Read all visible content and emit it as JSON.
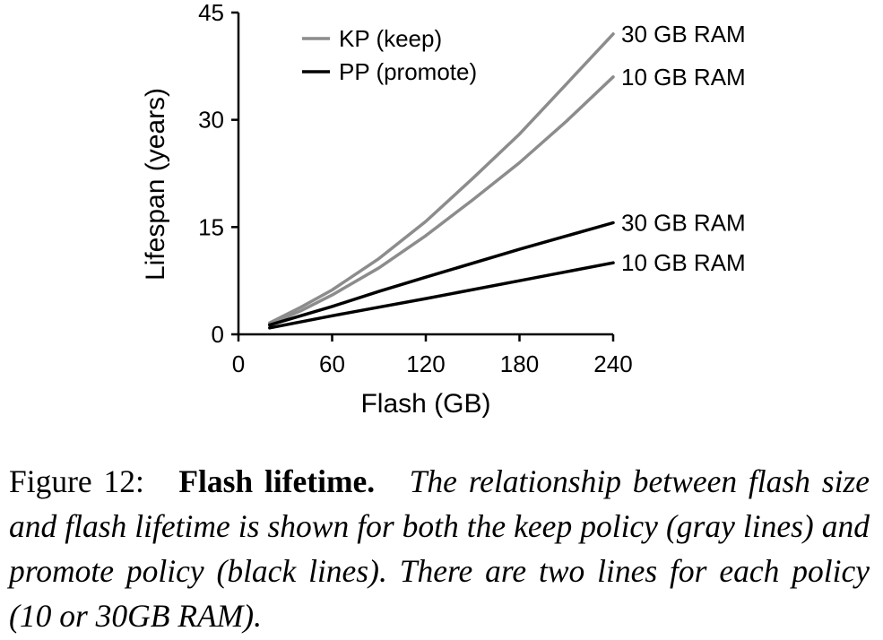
{
  "chart_data": {
    "type": "line",
    "xlabel": "Flash (GB)",
    "ylabel": "Lifespan (years)",
    "xlim": [
      0,
      240
    ],
    "ylim": [
      0,
      45
    ],
    "xticks": [
      0,
      60,
      120,
      180,
      240
    ],
    "yticks": [
      0,
      15,
      30,
      45
    ],
    "grid": false,
    "legend_position": "top-left",
    "legend": [
      {
        "label": "KP (keep)",
        "color": "#8c8c8c"
      },
      {
        "label": "PP (promote)",
        "color": "#000000"
      }
    ],
    "series": [
      {
        "policy": "KP (keep)",
        "label": "30 GB RAM",
        "color": "#8c8c8c",
        "x": [
          20,
          40,
          60,
          90,
          120,
          150,
          180,
          210,
          240
        ],
        "y": [
          1.6,
          3.8,
          6.2,
          10.6,
          15.8,
          21.8,
          28.0,
          35.0,
          42.0
        ]
      },
      {
        "policy": "KP (keep)",
        "label": "10 GB RAM",
        "color": "#8c8c8c",
        "x": [
          20,
          40,
          60,
          90,
          120,
          150,
          180,
          210,
          240
        ],
        "y": [
          1.4,
          3.3,
          5.5,
          9.3,
          13.8,
          18.8,
          24.0,
          29.8,
          36.0
        ]
      },
      {
        "policy": "PP (promote)",
        "label": "30 GB RAM",
        "color": "#000000",
        "x": [
          20,
          60,
          90,
          120,
          180,
          240
        ],
        "y": [
          1.3,
          3.9,
          6.0,
          8.0,
          11.9,
          15.6
        ]
      },
      {
        "policy": "PP (promote)",
        "label": "10 GB RAM",
        "color": "#000000",
        "x": [
          20,
          60,
          90,
          120,
          180,
          240
        ],
        "y": [
          0.9,
          2.6,
          3.8,
          5.0,
          7.5,
          10.0
        ]
      }
    ]
  },
  "caption": {
    "number": "Figure 12:",
    "title": "Flash lifetime.",
    "body": "The relationship between flash size and flash lifetime is shown for both the keep policy (gray lines) and promote policy (black lines). There are two lines for each policy (10 or 30GB RAM)."
  }
}
